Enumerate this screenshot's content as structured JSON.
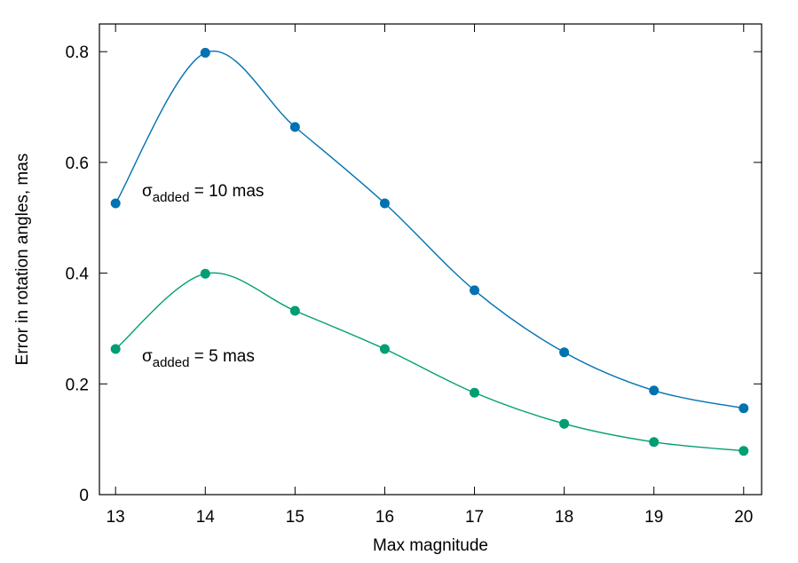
{
  "chart_data": {
    "type": "line",
    "x_label": "Max magnitude",
    "y_label": "Error in rotation angles, mas",
    "x": [
      13,
      14,
      15,
      16,
      17,
      18,
      19,
      20
    ],
    "series": [
      {
        "color": "#0072b2",
        "values": [
          0.526,
          0.798,
          0.664,
          0.526,
          0.369,
          0.257,
          0.188,
          0.156
        ]
      },
      {
        "color": "#009e73",
        "values": [
          0.263,
          0.399,
          0.332,
          0.263,
          0.184,
          0.128,
          0.095,
          0.079
        ]
      }
    ],
    "annotations": [
      {
        "symbol": "σ",
        "subscript": "added",
        "text": " = 10 mas"
      },
      {
        "symbol": "σ",
        "subscript": "added",
        "text": " = 5 mas"
      }
    ],
    "xlim": [
      12.82,
      20.2
    ],
    "ylim": [
      0,
      0.85
    ],
    "xticks": [
      13,
      14,
      15,
      16,
      17,
      18,
      19,
      20
    ],
    "yticks": [
      0,
      0.2,
      0.4,
      0.6,
      0.8
    ],
    "smooth": true
  }
}
